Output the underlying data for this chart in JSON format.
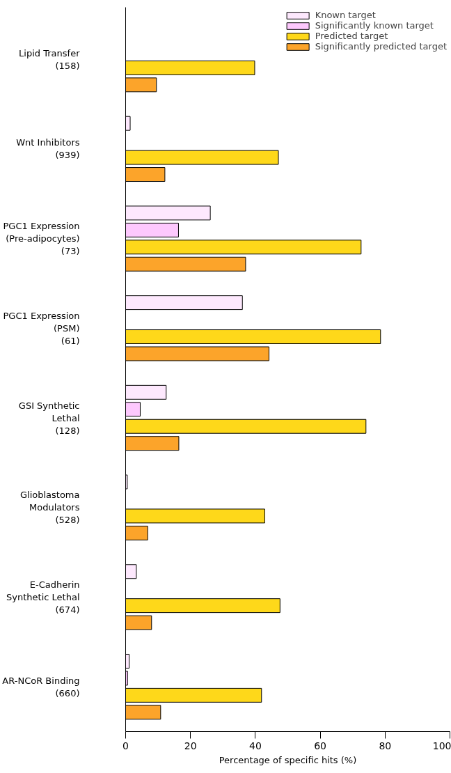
{
  "chart_data": {
    "type": "bar",
    "orientation": "horizontal",
    "xlabel": "Percentage of specific hits (%)",
    "categories": [
      "Lipid Transfer\n(158)",
      "Wnt Inhibitors\n(939)",
      "PGC1 Expression\n(Pre-adipocytes)\n(73)",
      "PGC1 Expression\n(PSM)\n(61)",
      "GSI Synthetic\nLethal\n(128)",
      "Glioblastoma\nModulators\n(528)",
      "E-Cadherin\nSynthetic Lethal\n(674)",
      "AR-NCoR Binding\n(660)"
    ],
    "series": [
      {
        "name": "Known target",
        "color": "#fde8fd",
        "values": [
          null,
          1.4,
          26.1,
          36.0,
          12.5,
          0.5,
          3.3,
          1.1
        ]
      },
      {
        "name": "Significantly known target",
        "color": "#fdc8fd",
        "values": [
          null,
          null,
          16.3,
          null,
          4.5,
          null,
          null,
          0.6
        ]
      },
      {
        "name": "Predicted target",
        "color": "#fed81a",
        "values": [
          39.8,
          47.1,
          72.6,
          78.6,
          74.1,
          42.9,
          47.6,
          41.9
        ]
      },
      {
        "name": "Significantly predicted target",
        "color": "#fca42a",
        "values": [
          9.5,
          12.1,
          37.0,
          44.2,
          16.4,
          6.8,
          8.0,
          10.8
        ]
      }
    ],
    "xlim": [
      0,
      100
    ],
    "xticks": [
      0,
      20,
      40,
      60,
      80,
      100
    ],
    "grid": false,
    "legend": "top right"
  }
}
